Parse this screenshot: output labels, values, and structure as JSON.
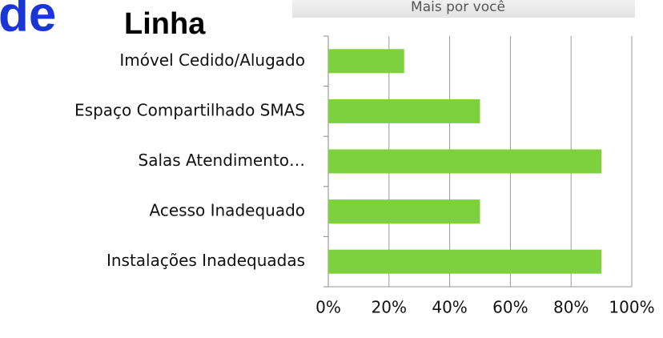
{
  "header": {
    "title_part": "de",
    "title_line": "Linha",
    "banner": "Mais por você"
  },
  "chart_data": {
    "type": "bar",
    "orientation": "horizontal",
    "categories": [
      "Imóvel Cedido/Alugado",
      "Espaço Compartilhado SMAS",
      "Salas Atendimento…",
      "Acesso Inadequado",
      "Instalações Inadequadas"
    ],
    "values": [
      25,
      50,
      90,
      50,
      90
    ],
    "color": "#7dd13d",
    "xlim": [
      0,
      100
    ],
    "xticks": [
      {
        "value": 0,
        "label": "0%"
      },
      {
        "value": 20,
        "label": "20%"
      },
      {
        "value": 40,
        "label": "40%"
      },
      {
        "value": 60,
        "label": "60%"
      },
      {
        "value": 80,
        "label": "80%"
      },
      {
        "value": 100,
        "label": "100%"
      }
    ],
    "grid": true
  }
}
